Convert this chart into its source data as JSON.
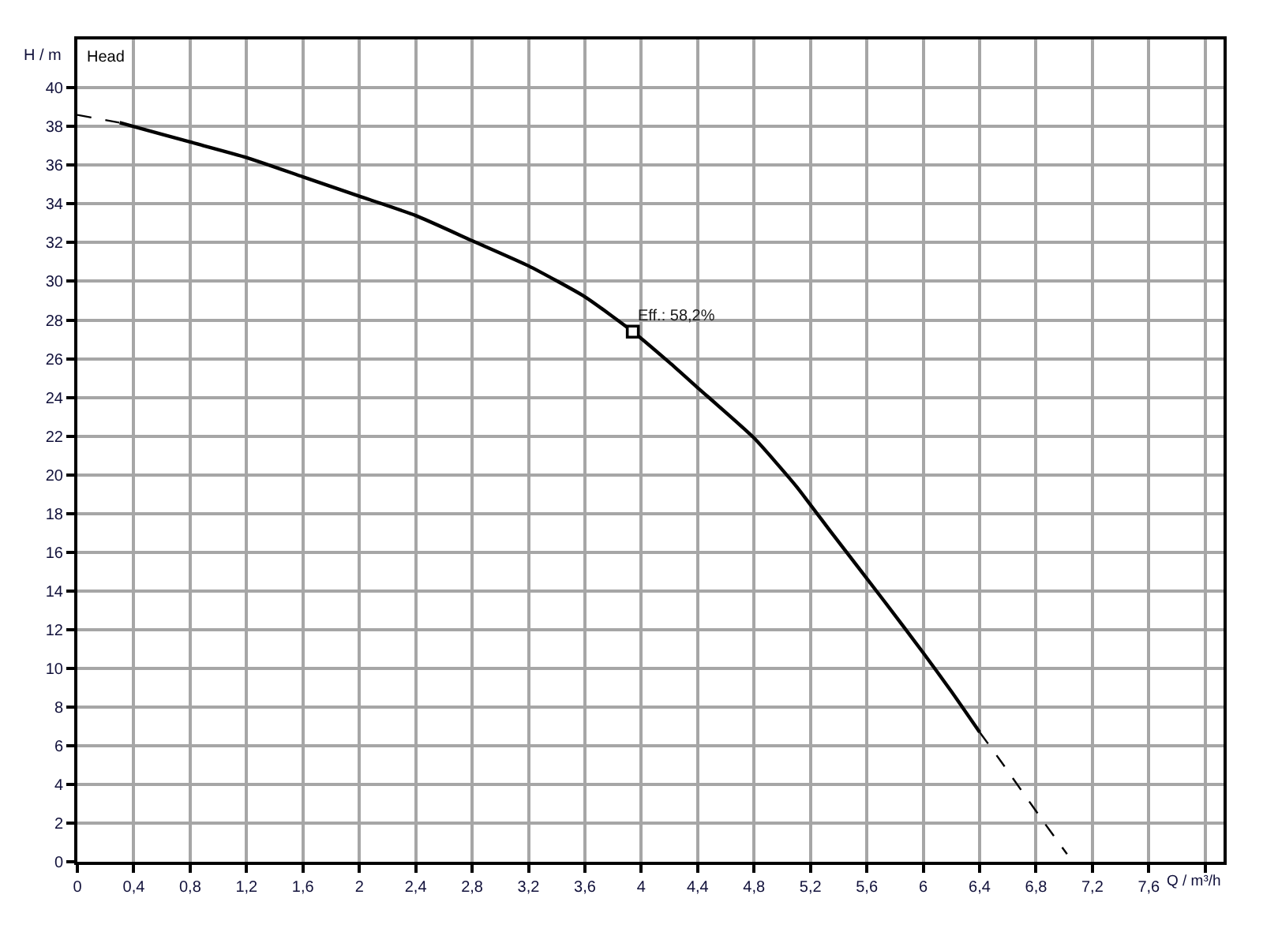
{
  "chart_data": {
    "type": "line",
    "title": "Head",
    "xlabel": "Q / m³/h",
    "ylabel": "H / m",
    "xlim": [
      0,
      8.13
    ],
    "ylim": [
      0,
      42.5
    ],
    "xticks": [
      0,
      {
        "value": 0.4,
        "label": "0,4"
      },
      {
        "value": 0.8,
        "label": "0,8"
      },
      {
        "value": 1.2,
        "label": "1,2"
      },
      {
        "value": 1.6,
        "label": "1,6"
      },
      2,
      {
        "value": 2.4,
        "label": "2,4"
      },
      {
        "value": 2.8,
        "label": "2,8"
      },
      {
        "value": 3.2,
        "label": "3,2"
      },
      {
        "value": 3.6,
        "label": "3,6"
      },
      4,
      {
        "value": 4.4,
        "label": "4,4"
      },
      {
        "value": 4.8,
        "label": "4,8"
      },
      {
        "value": 5.2,
        "label": "5,2"
      },
      {
        "value": 5.6,
        "label": "5,6"
      },
      6,
      {
        "value": 6.4,
        "label": "6,4"
      },
      {
        "value": 6.8,
        "label": "6,8"
      },
      {
        "value": 7.2,
        "label": "7,2"
      },
      {
        "value": 7.6,
        "label": "7,6"
      },
      {
        "value": 8,
        "label": null
      }
    ],
    "yticks": [
      0,
      2,
      4,
      6,
      8,
      10,
      12,
      14,
      16,
      18,
      20,
      22,
      24,
      26,
      28,
      30,
      32,
      34,
      36,
      38,
      40
    ],
    "grid": true,
    "series": [
      {
        "color": "#000000",
        "line_style": "dashed",
        "x": [
          0,
          0.3
        ],
        "values": [
          38.6,
          38.2
        ]
      },
      {
        "color": "#000000",
        "line_style": "solid",
        "x": [
          0.3,
          0.4,
          0.8,
          1.2,
          1.6,
          2.0,
          2.4,
          2.8,
          3.2,
          3.6,
          3.94,
          4.2,
          4.4,
          4.8,
          5.1,
          5.35,
          5.72,
          6.0,
          6.2,
          6.4
        ],
        "values": [
          38.2,
          38.0,
          37.2,
          36.4,
          35.4,
          34.4,
          33.4,
          32.1,
          30.8,
          29.2,
          27.4,
          25.8,
          24.5,
          21.9,
          19.4,
          17.0,
          13.5,
          10.8,
          8.8,
          6.7
        ]
      },
      {
        "color": "#000000",
        "line_style": "dashed",
        "x": [
          6.4,
          6.55,
          6.86,
          7.02
        ],
        "values": [
          6.7,
          5.2,
          2.0,
          0.4
        ]
      },
      {
        "type": "scatter",
        "marker": "square",
        "color": "#000000",
        "x": [
          3.94
        ],
        "values": [
          27.4
        ]
      }
    ],
    "annotations": [
      {
        "text": "Eff.: 58,2%",
        "x": 3.94,
        "y": 27.4
      }
    ]
  }
}
